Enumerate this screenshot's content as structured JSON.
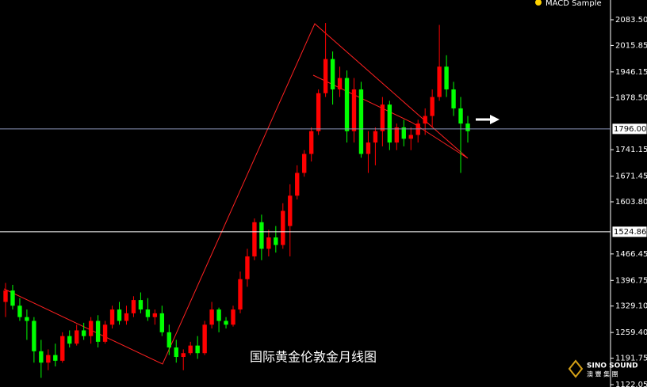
{
  "chart_data": {
    "type": "candlestick",
    "indicator": "MACD Sample",
    "caption": "国际黄金伦敦金月线图",
    "logo": {
      "name": "SINO SOUND",
      "subtitle": "澳 豐 集 團"
    },
    "up_color": "#ff0000",
    "down_color": "#00ff00",
    "ylim": [
      1115.8,
      2135.6
    ],
    "yticks": [
      {
        "value": 2083.5,
        "label": "2083.50"
      },
      2015.85,
      1946.15,
      {
        "value": 1878.5,
        "label": "1878.50"
      },
      1741.15,
      1671.45,
      {
        "value": 1603.8,
        "label": "1603.80"
      },
      1466.45,
      1396.75,
      {
        "value": 1329.1,
        "label": "1329.10"
      },
      {
        "value": 1259.4,
        "label": "1259.40"
      },
      1191.75,
      1122.05
    ],
    "levels": [
      {
        "value": 1796,
        "label": "1796.00",
        "color": "#8a94b8"
      },
      {
        "value": 1524.86,
        "label": "1524.86",
        "color": "#ffffff"
      }
    ],
    "open": [
      1340,
      1370,
      1330,
      1300,
      1290,
      1210,
      1180,
      1200,
      1185,
      1250,
      1230,
      1265,
      1250,
      1290,
      1235,
      1280,
      1320,
      1290,
      1310,
      1345,
      1320,
      1300,
      1310,
      1260,
      1220,
      1195,
      1205,
      1225,
      1205,
      1280,
      1320,
      1290,
      1280,
      1320,
      1400,
      1460,
      1550,
      1480,
      1510,
      1490,
      1540,
      1620,
      1680,
      1730,
      1790,
      1890,
      1980,
      1900,
      1930,
      1790,
      1900,
      1730,
      1760,
      1790,
      1860,
      1760,
      1800,
      1770,
      1780,
      1810,
      1830,
      1880,
      1960,
      1900,
      1850,
      1810
    ],
    "high": [
      1390,
      1385,
      1350,
      1320,
      1300,
      1240,
      1215,
      1230,
      1260,
      1265,
      1280,
      1285,
      1300,
      1305,
      1290,
      1330,
      1340,
      1330,
      1355,
      1365,
      1350,
      1320,
      1330,
      1280,
      1240,
      1215,
      1235,
      1250,
      1290,
      1340,
      1325,
      1300,
      1330,
      1420,
      1480,
      1560,
      1570,
      1530,
      1540,
      1600,
      1650,
      1700,
      1740,
      1800,
      1900,
      2075,
      2000,
      1960,
      1950,
      1930,
      1920,
      1790,
      1800,
      1880,
      1870,
      1810,
      1820,
      1800,
      1820,
      1850,
      1900,
      2070,
      1990,
      1920,
      1880,
      1830
    ],
    "low": [
      1300,
      1320,
      1290,
      1240,
      1180,
      1140,
      1160,
      1170,
      1180,
      1220,
      1225,
      1240,
      1230,
      1220,
      1230,
      1270,
      1280,
      1280,
      1300,
      1310,
      1290,
      1280,
      1250,
      1200,
      1180,
      1160,
      1200,
      1190,
      1200,
      1270,
      1260,
      1270,
      1275,
      1310,
      1380,
      1450,
      1450,
      1460,
      1470,
      1480,
      1460,
      1610,
      1670,
      1710,
      1780,
      1880,
      1860,
      1880,
      1760,
      1760,
      1720,
      1680,
      1700,
      1750,
      1740,
      1740,
      1750,
      1740,
      1760,
      1780,
      1800,
      1870,
      1880,
      1830,
      1680,
      1760
    ],
    "close": [
      1370,
      1330,
      1300,
      1290,
      1210,
      1180,
      1200,
      1185,
      1250,
      1230,
      1265,
      1250,
      1290,
      1235,
      1280,
      1320,
      1290,
      1310,
      1345,
      1320,
      1300,
      1310,
      1260,
      1220,
      1195,
      1205,
      1225,
      1205,
      1280,
      1320,
      1290,
      1280,
      1320,
      1400,
      1460,
      1550,
      1480,
      1510,
      1490,
      1580,
      1620,
      1680,
      1730,
      1790,
      1890,
      1980,
      1900,
      1930,
      1790,
      1900,
      1730,
      1760,
      1790,
      1860,
      1760,
      1800,
      1770,
      1780,
      1810,
      1830,
      1880,
      1960,
      1900,
      1850,
      1810,
      1790
    ]
  }
}
